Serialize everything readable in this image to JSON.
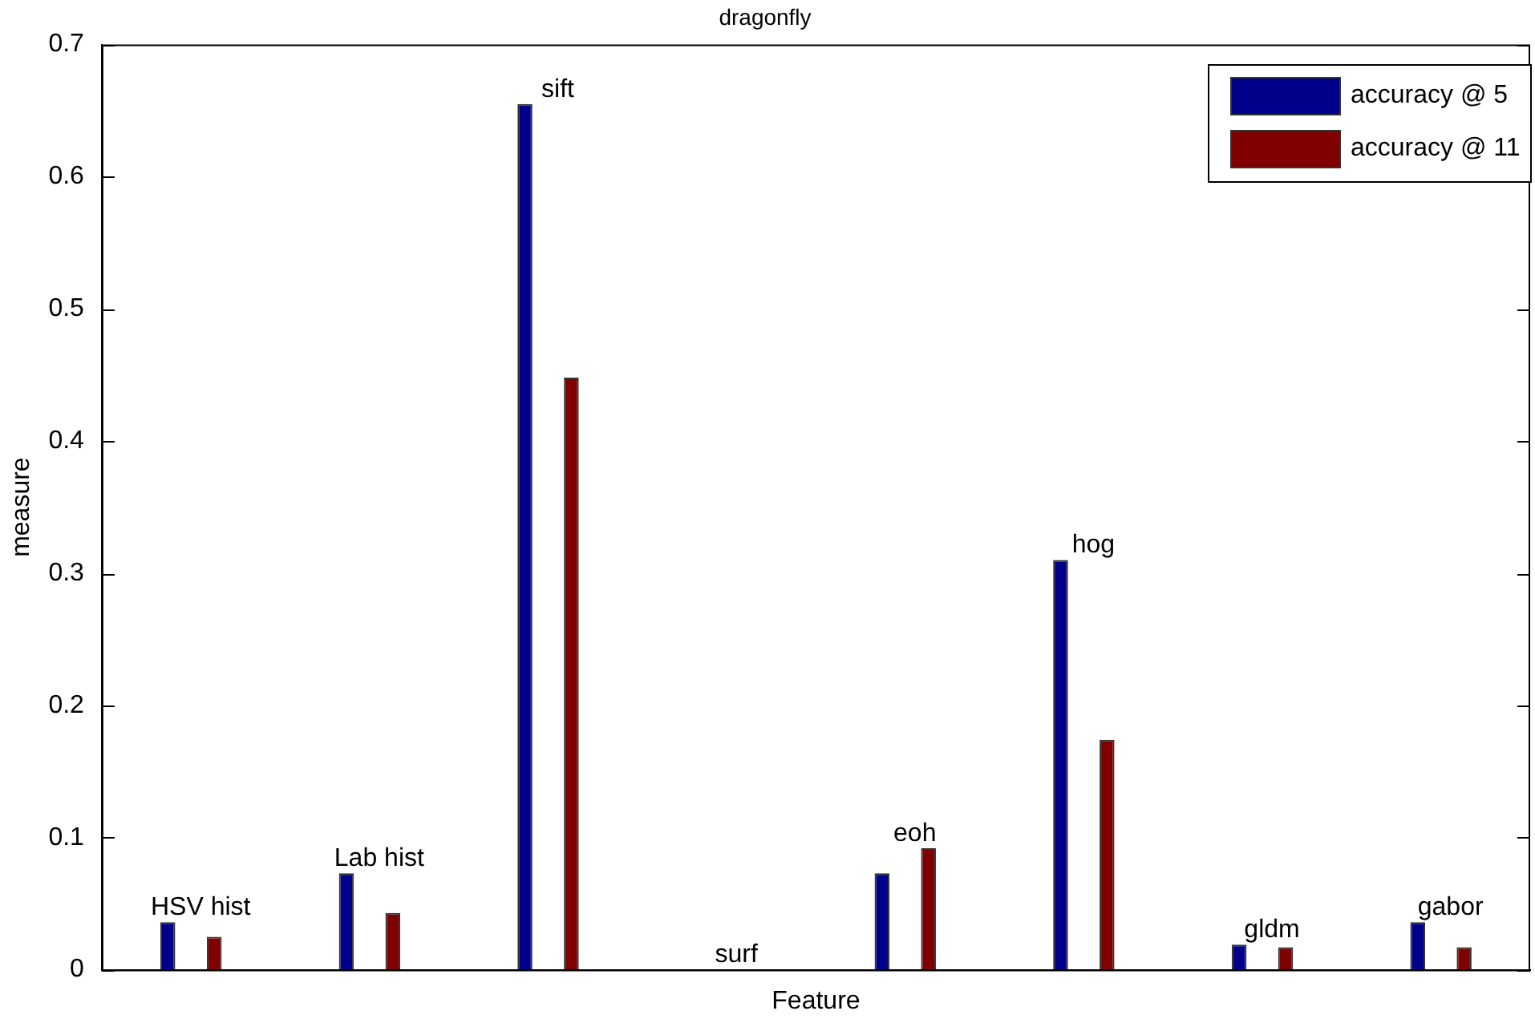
{
  "chart_data": {
    "type": "bar",
    "title": "dragonfly",
    "xlabel": "Feature",
    "ylabel": "measure",
    "categories": [
      "HSV hist",
      "Lab hist",
      "sift",
      "surf",
      "eoh",
      "hog",
      "gldm",
      "gabor"
    ],
    "series": [
      {
        "name": "accuracy @ 5",
        "color": "#00008b",
        "values": [
          0.036,
          0.073,
          0.655,
          0,
          0.073,
          0.31,
          0.019,
          0.036
        ]
      },
      {
        "name": "accuracy @ 11",
        "color": "#800000",
        "values": [
          0.025,
          0.043,
          0.448,
          0,
          0.092,
          0.174,
          0.017,
          0.017
        ]
      }
    ],
    "ylim": [
      0,
      0.7
    ],
    "yticks": [
      0,
      0.1,
      0.2,
      0.3,
      0.4,
      0.5,
      0.6,
      0.7
    ],
    "grid": false,
    "legend": "top right",
    "tick_labels": "y"
  }
}
